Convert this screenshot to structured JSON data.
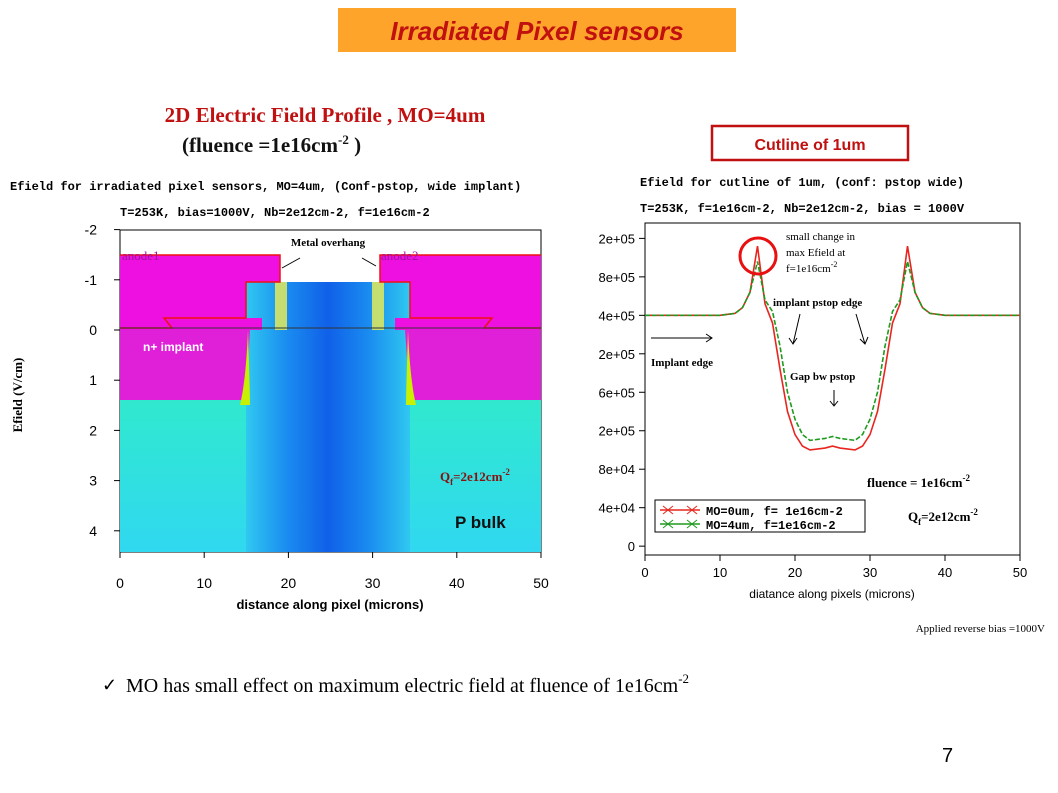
{
  "title": "Irradiated Pixel sensors",
  "left": {
    "heading": "2D Electric Field Profile , MO=4um",
    "subheading": "(fluence =1e16cm",
    "subheading_sup": "-2",
    "subheading_end": " )",
    "plot_title_1": "Efield for irradiated pixel sensors, MO=4um, (Conf-pstop, wide implant)",
    "plot_title_2": "T=253K, bias=1000V, Nb=2e12cm-2, f=1e16cm-2",
    "metal": "Metal overhang",
    "anode1": "anode1",
    "anode2": "anode2",
    "implant": "n+ implant",
    "q": "Q",
    "q_sub": "f",
    "q_val": "=2e12cm",
    "q_sup": "-2",
    "bulk": "P bulk",
    "ylabel": "Efield (V/cm)",
    "xlabel": "distance along pixel (microns)",
    "xticks": [
      0,
      10,
      20,
      30,
      40,
      50
    ],
    "yticks": [
      -2,
      -1,
      0,
      1,
      2,
      3,
      4
    ]
  },
  "cutline_label": "Cutline of 1um",
  "chart_data": {
    "type": "line",
    "title": "Efield for cutline of 1um, (conf: pstop wide)",
    "subtitle": "T=253K, f=1e16cm-2, Nb=2e12cm-2, bias = 1000V",
    "x_label": "diatance along pixels (microns)",
    "x": [
      0,
      5,
      10,
      12,
      13,
      14,
      15,
      16,
      17,
      18,
      19,
      20,
      21,
      22,
      24,
      25,
      26,
      28,
      29,
      30,
      31,
      32,
      33,
      34,
      35,
      36,
      37,
      38,
      40,
      45,
      50
    ],
    "series": [
      {
        "name": "MO=0um, f= 1e16cm-2",
        "color": "#e8261f",
        "values": [
          6.0,
          6.0,
          6.0,
          6.05,
          6.2,
          6.6,
          7.8,
          6.3,
          5.8,
          4.6,
          3.5,
          2.9,
          2.6,
          2.5,
          2.55,
          2.6,
          2.55,
          2.5,
          2.6,
          2.9,
          3.5,
          4.6,
          5.8,
          6.3,
          7.8,
          6.6,
          6.2,
          6.05,
          6.0,
          6.0,
          6.0
        ]
      },
      {
        "name": "MO=4um, f=1e16cm-2",
        "color": "#1e9a1e",
        "values": [
          6.0,
          6.0,
          6.0,
          6.05,
          6.2,
          6.6,
          7.4,
          6.4,
          6.1,
          5.2,
          4.0,
          3.3,
          2.9,
          2.75,
          2.8,
          2.85,
          2.8,
          2.75,
          2.9,
          3.3,
          4.0,
          5.2,
          6.1,
          6.4,
          7.4,
          6.6,
          6.2,
          6.05,
          6.0,
          6.0,
          6.0
        ]
      }
    ],
    "xlim": [
      0,
      50
    ],
    "xticks": [
      0,
      10,
      20,
      30,
      40,
      50
    ],
    "ylim": [
      -0.23,
      8.4
    ],
    "yticks": [
      {
        "value": 0,
        "label": "0"
      },
      {
        "value": 1,
        "label": "4e+04"
      },
      {
        "value": 2,
        "label": "8e+04"
      },
      {
        "value": 3,
        "label": "2e+05"
      },
      {
        "value": 4,
        "label": "6e+05"
      },
      {
        "value": 5,
        "label": "2e+05"
      },
      {
        "value": 6,
        "label": "4e+05"
      },
      {
        "value": 7,
        "label": "8e+05"
      },
      {
        "value": 8,
        "label": "2e+05"
      }
    ],
    "annotations": {
      "small1": "small change in",
      "small2": "max Efield at",
      "small3": "f=1e16cm",
      "small3_sup": "-2",
      "edges": "implant  pstop edge",
      "implant_edge": "Implant edge",
      "gap": "Gap bw  pstop",
      "fluence": "fluence = 1e16cm",
      "fluence_sup": "-2",
      "q": "Q",
      "q_sub": "f",
      "q_val": "=2e12cm",
      "q_sup": "-2"
    }
  },
  "note": "Applied reverse bias =1000V",
  "bullet": "MO has small effect on maximum electric field  at fluence of 1e16cm",
  "bullet_sup": "-2",
  "page_number": "7"
}
